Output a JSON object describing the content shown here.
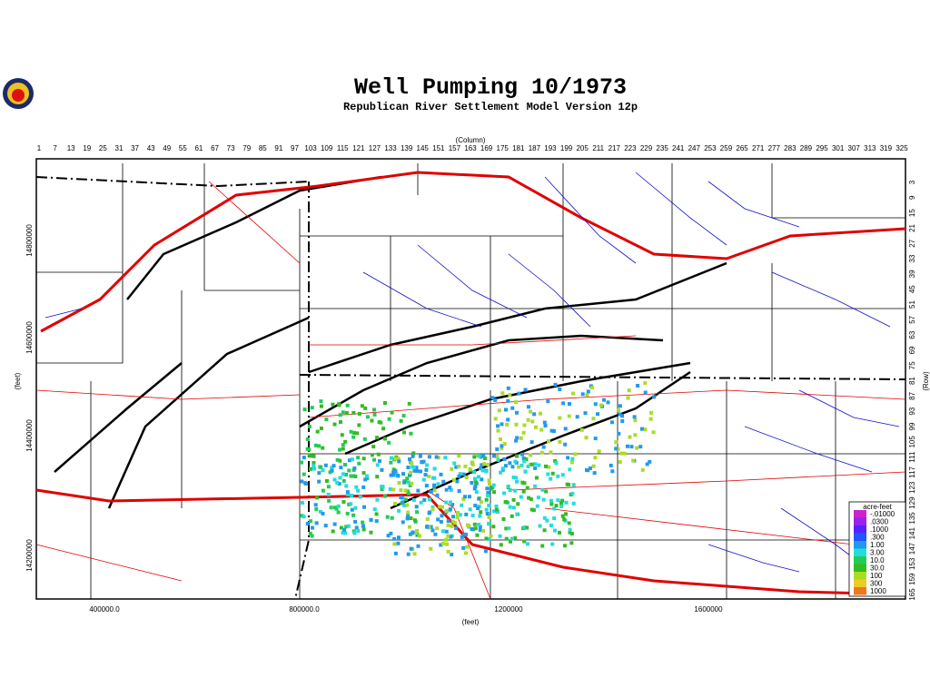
{
  "title": "Well Pumping 10/1973",
  "subtitle": "Republican River Settlement Model Version 12p",
  "top_axis": {
    "label": "(Column)",
    "ticks": [
      1,
      7,
      13,
      19,
      25,
      31,
      37,
      43,
      49,
      55,
      61,
      67,
      73,
      79,
      85,
      91,
      97,
      103,
      109,
      115,
      121,
      127,
      133,
      139,
      145,
      151,
      157,
      163,
      169,
      175,
      181,
      187,
      193,
      199,
      205,
      211,
      217,
      223,
      229,
      235,
      241,
      247,
      253,
      259,
      265,
      271,
      277,
      283,
      289,
      295,
      301,
      307,
      313,
      319,
      325
    ]
  },
  "right_axis": {
    "label": "(Row)",
    "ticks": [
      3,
      9,
      15,
      21,
      27,
      33,
      39,
      45,
      51,
      57,
      63,
      69,
      75,
      81,
      87,
      93,
      99,
      105,
      111,
      117,
      123,
      129,
      135,
      141,
      147,
      153,
      159,
      165
    ]
  },
  "left_axis": {
    "label": "(feet)",
    "ticks": [
      "14800000",
      "14600000",
      "14400000",
      "14200000"
    ]
  },
  "bottom_axis": {
    "label": "(feet)",
    "ticks": [
      "400000.0",
      "800000.0",
      "1200000",
      "1600000"
    ]
  },
  "legend": {
    "title": "acre-feet",
    "items": [
      {
        "label": "-.01000",
        "color": "#cc22cc"
      },
      {
        "label": ".0300",
        "color": "#9922ee"
      },
      {
        "label": ".1000",
        "color": "#5522ff"
      },
      {
        "label": ".300",
        "color": "#2255ff"
      },
      {
        "label": "1.00",
        "color": "#2299ee"
      },
      {
        "label": "3.00",
        "color": "#22dddd"
      },
      {
        "label": "10.0",
        "color": "#22cc55"
      },
      {
        "label": "30.0",
        "color": "#33bb22"
      },
      {
        "label": "100",
        "color": "#aadd22"
      },
      {
        "label": "300",
        "color": "#eecc22"
      },
      {
        "label": "1000",
        "color": "#ee7722"
      }
    ]
  }
}
